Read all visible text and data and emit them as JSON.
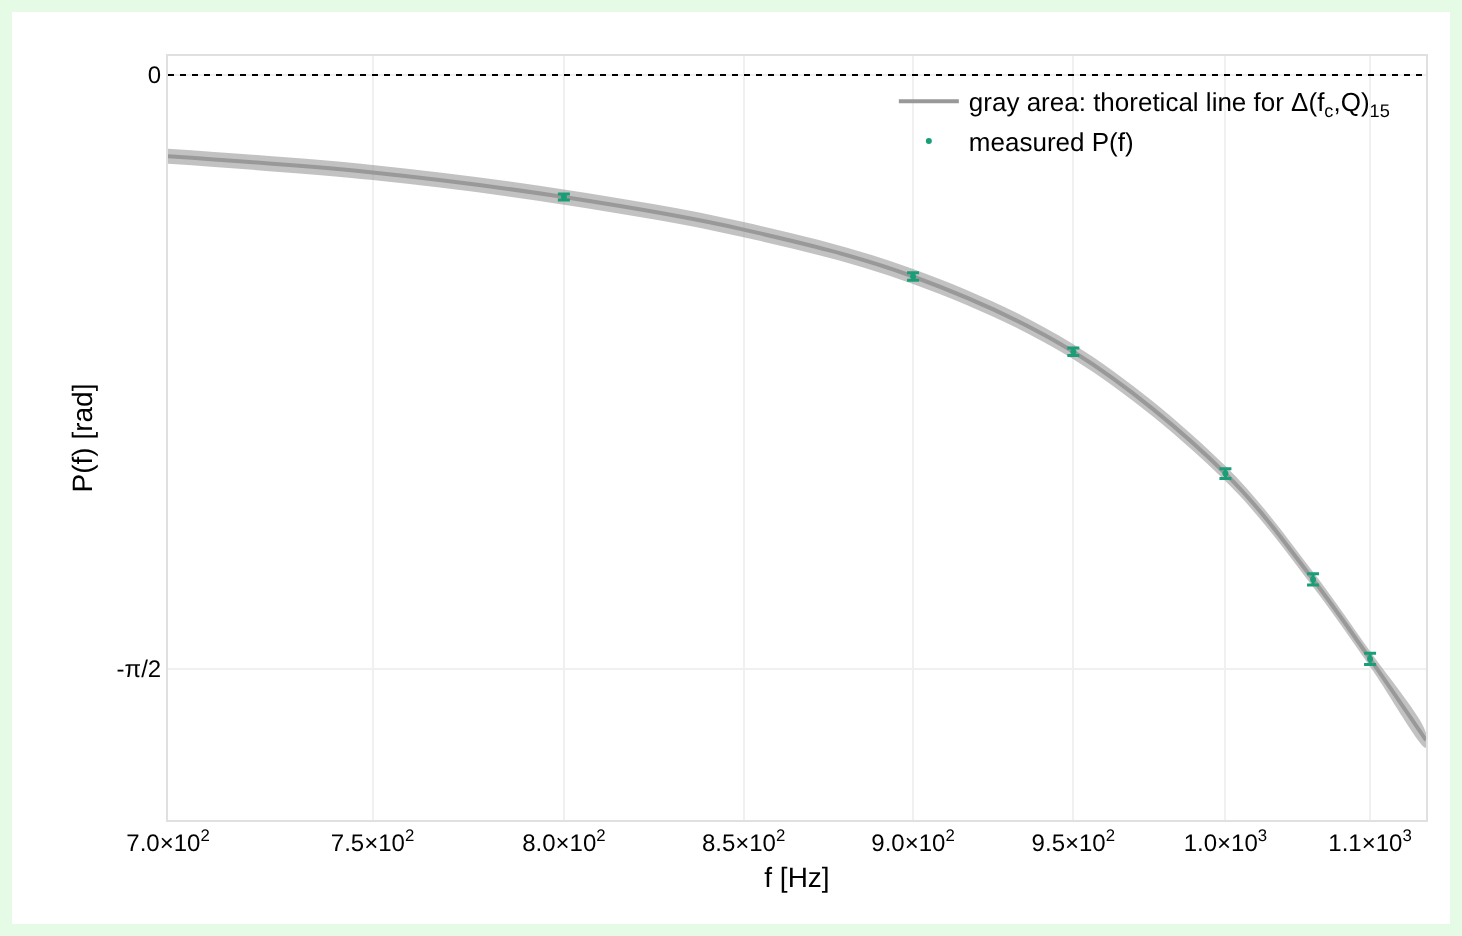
{
  "chart_data": {
    "type": "line",
    "xlabel": "f [Hz]",
    "ylabel": "P(f) [rad]",
    "log": "x",
    "xlim": [
      700,
      1070
    ],
    "ylim": [
      -1.97,
      0.05
    ],
    "xticks": [
      {
        "value": 700,
        "label": "7.0×10$^{2}$"
      },
      {
        "value": 750,
        "label": "7.5×10$^{2}$"
      },
      {
        "value": 800,
        "label": "8.0×10$^{2}$"
      },
      {
        "value": 850,
        "label": "8.5×10$^{2}$"
      },
      {
        "value": 900,
        "label": "9.0×10$^{2}$"
      },
      {
        "value": 950,
        "label": "9.5×10$^{2}$"
      },
      {
        "value": 1000,
        "label": "1.0×10$^{3}$"
      },
      {
        "value": 1050,
        "label": "1.1×10$^{3}$"
      }
    ],
    "yticks": [
      {
        "value": 0,
        "label": "0"
      },
      {
        "value": -1.5708,
        "label": "-π/2"
      }
    ],
    "grid": true,
    "legend": "top right",
    "ref_lines": [
      {
        "axis": "y",
        "value": 0,
        "color": "#000000",
        "line_style": "dotted"
      }
    ],
    "series": [
      {
        "name": "gray area: thoretical line for Δ(f$_{c}$,Q)$_{15}$",
        "color": "#999999",
        "line_style": "solid",
        "x": [
          700,
          750,
          800,
          850,
          900,
          950,
          1000,
          1030,
          1050,
          1070
        ],
        "values": [
          -0.215,
          -0.258,
          -0.323,
          -0.409,
          -0.533,
          -0.732,
          -1.054,
          -1.334,
          -1.544,
          -1.759
        ],
        "lower": [
          -0.235,
          -0.278,
          -0.343,
          -0.429,
          -0.553,
          -0.752,
          -1.074,
          -1.354,
          -1.564,
          -1.779
        ],
        "upper": [
          -0.195,
          -0.238,
          -0.303,
          -0.389,
          -0.513,
          -0.712,
          -1.034,
          -1.314,
          -1.524,
          -1.739
        ]
      },
      {
        "name": "measured P(f)",
        "type": "scatter",
        "color": "#1a9e77",
        "marker": "circle",
        "x": [
          800,
          900,
          950,
          1000,
          1030,
          1050
        ],
        "values": [
          -0.323,
          -0.533,
          -0.732,
          -1.054,
          -1.334,
          -1.544
        ],
        "errors": [
          0.008,
          0.01,
          0.01,
          0.013,
          0.015,
          0.015
        ]
      }
    ]
  }
}
